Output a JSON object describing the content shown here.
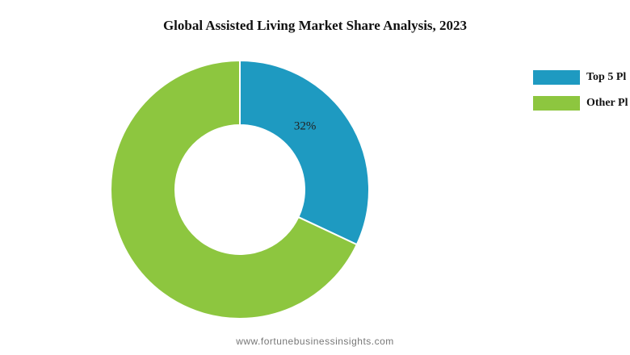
{
  "chart_data": {
    "type": "pie",
    "variant": "donut",
    "title": "Global Assisted Living Market Share Analysis, 2023",
    "slices": [
      {
        "label": "Top 5 Pl",
        "value": 32,
        "color": "#1e9ac1",
        "data_label": "32%"
      },
      {
        "label": "Other Pl",
        "value": 68,
        "color": "#8dc63f",
        "data_label": ""
      }
    ],
    "legend": "right"
  },
  "footer": {
    "source": "www.fortunebusinessinsights.com"
  }
}
